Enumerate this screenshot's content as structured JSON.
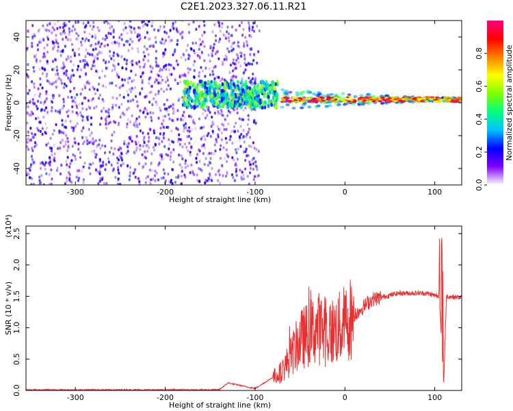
{
  "figure": {
    "title": "C2E1.2023.327.06.11.R21"
  },
  "chart_data": [
    {
      "type": "heatmap",
      "title": "C2E1.2023.327.06.11.R21",
      "xlabel": "Height of straight line (km)",
      "ylabel": "Frequency (Hz)",
      "xlim": [
        -355,
        130
      ],
      "ylim": [
        -50,
        50
      ],
      "x_ticks": [
        -300,
        -200,
        -100,
        0,
        100
      ],
      "y_ticks": [
        -40,
        -20,
        0,
        20,
        40
      ],
      "colorbar": {
        "label": "Normalized spectral amplitude",
        "range": [
          0.0,
          1.0
        ],
        "ticks": [
          0.0,
          0.2,
          0.4,
          0.6,
          0.8
        ],
        "colormap": [
          "#ffffff",
          "#8000ff",
          "#0000ff",
          "#00c0ff",
          "#00ff80",
          "#80ff00",
          "#ffff00",
          "#ff8000",
          "#ff0000",
          "#ff0080"
        ]
      },
      "features": [
        {
          "x_range": [
            -355,
            -95
          ],
          "description_level": "noise_scatter",
          "amplitude": 0.15
        },
        {
          "x_range": [
            -180,
            -75
          ],
          "center_hz": 5,
          "amplitude": 0.4
        },
        {
          "x_range": [
            -70,
            130
          ],
          "center_hz": 2,
          "amplitude": 0.85
        }
      ],
      "grid": false
    },
    {
      "type": "line",
      "xlabel": "Height of straight line (km)",
      "ylabel": "SNR (10 * v/v)",
      "y_scale_note": "(x10⁴)",
      "xlim": [
        -355,
        130
      ],
      "ylim": [
        0,
        2.62
      ],
      "x_ticks": [
        -300,
        -200,
        -100,
        0,
        100
      ],
      "y_ticks": [
        0.0,
        0.5,
        1.0,
        1.5,
        2.0,
        2.5
      ],
      "color": "#e83030",
      "series_envelope": [
        {
          "x": -355,
          "y": 0.01
        },
        {
          "x": -140,
          "y": 0.01
        },
        {
          "x": -130,
          "y": 0.12
        },
        {
          "x": -100,
          "y": 0.03
        },
        {
          "x": -70,
          "y": 0.3
        },
        {
          "x": -50,
          "y": 0.8
        },
        {
          "x": -30,
          "y": 1.0
        },
        {
          "x": -20,
          "y": 0.9
        },
        {
          "x": -5,
          "y": 1.0
        },
        {
          "x": 10,
          "y": 1.2
        },
        {
          "x": 30,
          "y": 1.45
        },
        {
          "x": 60,
          "y": 1.55
        },
        {
          "x": 90,
          "y": 1.55
        },
        {
          "x": 105,
          "y": 1.5
        },
        {
          "x": 110,
          "y": 0.1
        },
        {
          "x": 113,
          "y": 1.5
        },
        {
          "x": 130,
          "y": 1.48
        }
      ],
      "grid": false
    }
  ]
}
